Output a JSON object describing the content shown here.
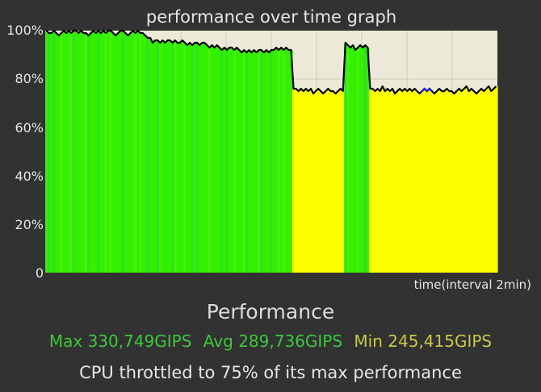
{
  "chart_data": {
    "type": "area",
    "title": "performance over time graph",
    "xlabel": "time(interval 2min)",
    "ylabel": "",
    "ylim": [
      0,
      100
    ],
    "yticks": [
      "100%",
      "80%",
      "60%",
      "40%",
      "20%",
      "0"
    ],
    "grid": true,
    "colors": {
      "background": "#ece9d8",
      "high": "#33f000",
      "throttled": "#ffff00",
      "line": "#000000",
      "marker": "#2020c0",
      "grid": "#cfcab6"
    },
    "series": [
      {
        "values": [
          100,
          99,
          99,
          100,
          99,
          98,
          99,
          100,
          99,
          100,
          99,
          100,
          100,
          99,
          100,
          99,
          99,
          98,
          99,
          100,
          99,
          100,
          99,
          100,
          99,
          100,
          100,
          99,
          98,
          99,
          100,
          100,
          99,
          98,
          99,
          100,
          99,
          100,
          99,
          99,
          98,
          97,
          97,
          95,
          96,
          96,
          95,
          96,
          95,
          96,
          96,
          95,
          96,
          95,
          95,
          96,
          95,
          94,
          95,
          94,
          95,
          95,
          94,
          95,
          95,
          94,
          93,
          94,
          93,
          94,
          93,
          92,
          93,
          92,
          93,
          93,
          92,
          93,
          92,
          91,
          92,
          91,
          92,
          91,
          92,
          91,
          92,
          92,
          91,
          92,
          91,
          92,
          92,
          93,
          92,
          93,
          92,
          93,
          92,
          92,
          76,
          76,
          75,
          76,
          75,
          76,
          75,
          76,
          74,
          75,
          76,
          75,
          74,
          75,
          76,
          75,
          75,
          74,
          75,
          76,
          75,
          95,
          94,
          93,
          94,
          92,
          93,
          94,
          93,
          94,
          93,
          76,
          76,
          75,
          76,
          75,
          77,
          75,
          76,
          75,
          76,
          74,
          75,
          76,
          75,
          76,
          75,
          76,
          75,
          76,
          75,
          74,
          75,
          76,
          75,
          76,
          75,
          74,
          75,
          76,
          75,
          75,
          76,
          75,
          75,
          74,
          75,
          76,
          75,
          76,
          77,
          75,
          76,
          75,
          74,
          75,
          76,
          75,
          76,
          77,
          75,
          76,
          77
        ]
      }
    ],
    "marker_range": [
      151,
      156
    ]
  },
  "summary": {
    "heading": "Performance",
    "max": "Max 330,749GIPS",
    "avg": "Avg 289,736GIPS",
    "min": "Min 245,415GIPS",
    "throttle_text": "CPU throttled to 75% of its max performance"
  }
}
